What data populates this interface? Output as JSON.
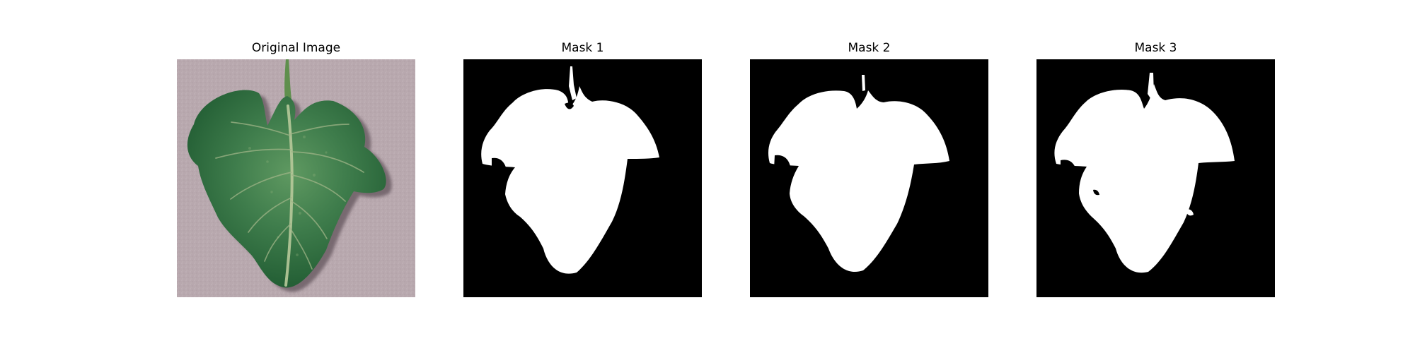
{
  "panels": [
    {
      "title": "Original Image",
      "kind": "photo"
    },
    {
      "title": "Mask 1",
      "kind": "mask"
    },
    {
      "title": "Mask 2",
      "kind": "mask"
    },
    {
      "title": "Mask 3",
      "kind": "mask"
    }
  ],
  "colors": {
    "figure_background": "#ffffff",
    "photo_background": "#b7a7ae",
    "leaf_dark": "#1f5a31",
    "leaf_mid": "#3f7d4c",
    "leaf_light": "#6ea26c",
    "vein": "#b7c99a",
    "stem": "#5f8f4d",
    "shadow": "#6d5e66",
    "mask_background": "#000000",
    "mask_foreground": "#ffffff"
  }
}
